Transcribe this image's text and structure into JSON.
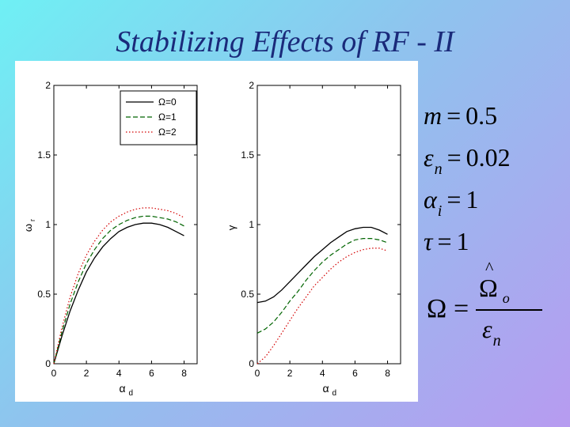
{
  "slide": {
    "title": "Stabilizing Effects of RF - II"
  },
  "params": {
    "m": {
      "symbol": "m",
      "value": "0.5"
    },
    "eps_n": {
      "symbol": "ε",
      "subscript": "n",
      "value": "0.02"
    },
    "alpha_i": {
      "symbol": "α",
      "subscript": "i",
      "value": "1"
    },
    "tau": {
      "symbol": "τ",
      "value": "1"
    },
    "omega_def": {
      "lhs": "Ω",
      "numerator": "Ω",
      "numerator_sub": "o",
      "denominator": "ε",
      "denominator_sub": "n"
    }
  },
  "colors": {
    "omega0": "#000000",
    "omega1": "#006400",
    "omega2": "#d40000"
  },
  "chart_data": [
    {
      "type": "line",
      "id": "left",
      "title": "",
      "xlabel": "α_d",
      "xlabel_main": "α",
      "xlabel_sub": "d",
      "ylabel": "ω_r",
      "ylabel_main": "ω",
      "ylabel_sub": "r",
      "xlim": [
        0,
        8.8
      ],
      "ylim": [
        0,
        2
      ],
      "xticks": [
        "0",
        "2",
        "4",
        "6",
        "8"
      ],
      "yticks": [
        "0",
        "0.5",
        "1",
        "1.5",
        "2"
      ],
      "legend": {
        "position": "top-right",
        "entries": [
          "Ω=0",
          "Ω=1",
          "Ω=2"
        ]
      },
      "x": [
        0,
        0.5,
        1,
        1.5,
        2,
        2.5,
        3,
        3.5,
        4,
        4.5,
        5,
        5.5,
        6,
        6.5,
        7,
        7.5,
        8
      ],
      "series": [
        {
          "name": "Ω=0",
          "style": "solid",
          "values": [
            0.0,
            0.2,
            0.38,
            0.53,
            0.66,
            0.76,
            0.84,
            0.9,
            0.95,
            0.98,
            1.0,
            1.01,
            1.01,
            1.0,
            0.98,
            0.95,
            0.92
          ]
        },
        {
          "name": "Ω=1",
          "style": "dashed",
          "values": [
            0.0,
            0.23,
            0.43,
            0.59,
            0.72,
            0.82,
            0.9,
            0.96,
            1.0,
            1.03,
            1.05,
            1.06,
            1.06,
            1.05,
            1.04,
            1.02,
            0.99
          ]
        },
        {
          "name": "Ω=2",
          "style": "dotted",
          "values": [
            0.0,
            0.26,
            0.48,
            0.65,
            0.78,
            0.88,
            0.96,
            1.02,
            1.06,
            1.09,
            1.11,
            1.12,
            1.12,
            1.11,
            1.1,
            1.08,
            1.05
          ]
        }
      ]
    },
    {
      "type": "line",
      "id": "right",
      "title": "",
      "xlabel": "α_d",
      "xlabel_main": "α",
      "xlabel_sub": "d",
      "ylabel": "γ",
      "ylabel_main": "γ",
      "ylabel_sub": "",
      "xlim": [
        0,
        8.8
      ],
      "ylim": [
        0,
        2
      ],
      "xticks": [
        "0",
        "2",
        "4",
        "6",
        "8"
      ],
      "yticks": [
        "0",
        "0.5",
        "1",
        "1.5",
        "2"
      ],
      "x": [
        0,
        0.5,
        1,
        1.5,
        2,
        2.5,
        3,
        3.5,
        4,
        4.5,
        5,
        5.5,
        6,
        6.5,
        7,
        7.5,
        8
      ],
      "series": [
        {
          "name": "Ω=0",
          "style": "solid",
          "values": [
            0.44,
            0.45,
            0.48,
            0.53,
            0.59,
            0.65,
            0.71,
            0.77,
            0.82,
            0.87,
            0.91,
            0.95,
            0.97,
            0.98,
            0.98,
            0.96,
            0.93
          ]
        },
        {
          "name": "Ω=1",
          "style": "dashed",
          "values": [
            0.22,
            0.25,
            0.3,
            0.37,
            0.45,
            0.52,
            0.6,
            0.67,
            0.73,
            0.78,
            0.82,
            0.86,
            0.89,
            0.9,
            0.9,
            0.89,
            0.87
          ]
        },
        {
          "name": "Ω=2",
          "style": "dotted",
          "values": [
            0.0,
            0.05,
            0.13,
            0.22,
            0.31,
            0.4,
            0.48,
            0.56,
            0.62,
            0.68,
            0.73,
            0.77,
            0.8,
            0.82,
            0.83,
            0.83,
            0.81
          ]
        }
      ]
    }
  ]
}
